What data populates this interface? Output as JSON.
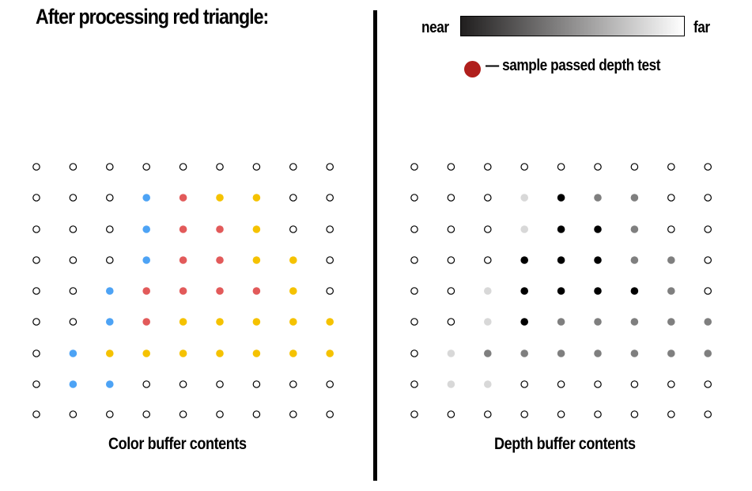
{
  "title": "After processing red triangle:",
  "depth_scale": {
    "near_label": "near",
    "far_label": "far",
    "near_color": "#201e1e",
    "far_color": "#ffffff"
  },
  "legend": {
    "text": "— sample passed depth test",
    "color": "#b01f1c"
  },
  "colors": {
    "blue": "#4da3f5",
    "red": "#e25a5a",
    "yellow": "#f5c200",
    "black": "#000000",
    "dark_gray": "#7f7f7f",
    "light_gray": "#d8d8d8",
    "empty_stroke": "#000000"
  },
  "color_buffer": {
    "caption": "Color buffer contents",
    "rows": [
      ".........",
      "...BRYY..",
      "...BRRY..",
      "...BRRYY.",
      "..BRRRRY.",
      "..BRYYYYY",
      ".BYYYYYYY",
      ".BB......",
      "........."
    ]
  },
  "depth_buffer": {
    "caption": "Depth buffer contents",
    "rows": [
      ".........",
      "...LKGG..",
      "...LKKG..",
      "...KKKGG.",
      "..LKKKKG.",
      "..LKGGGGG",
      ".LGGGGGGG",
      ".LL......",
      "........."
    ]
  }
}
